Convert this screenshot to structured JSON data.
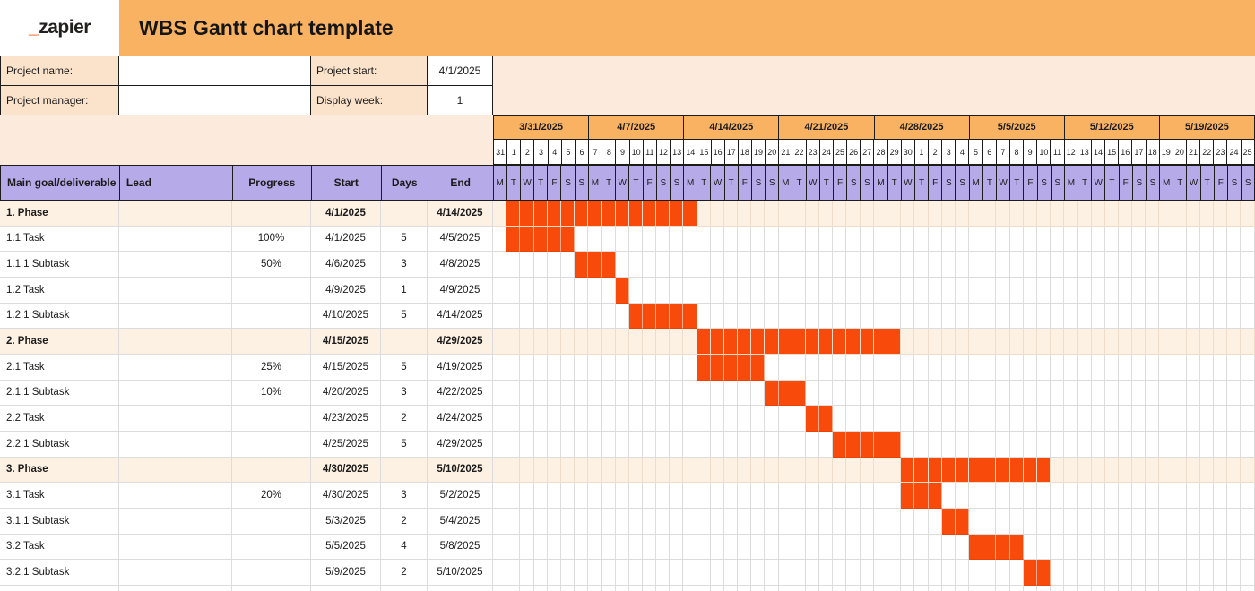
{
  "brand": {
    "logo_prefix": "_",
    "logo_text": "zapier"
  },
  "header": {
    "title": "WBS Gantt chart template"
  },
  "fields": {
    "project_name_label": "Project name:",
    "project_name_value": "",
    "project_manager_label": "Project manager:",
    "project_manager_value": "",
    "project_start_label": "Project start:",
    "project_start_value": "4/1/2025",
    "display_week_label": "Display week:",
    "display_week_value": "1"
  },
  "timeline": {
    "weeks": [
      "3/31/2025",
      "4/7/2025",
      "4/14/2025",
      "4/21/2025",
      "4/28/2025",
      "5/5/2025",
      "5/12/2025",
      "5/19/2025"
    ],
    "day_numbers": [
      31,
      1,
      2,
      3,
      4,
      5,
      6,
      7,
      8,
      9,
      10,
      11,
      12,
      13,
      14,
      15,
      16,
      17,
      18,
      19,
      20,
      21,
      22,
      23,
      24,
      25,
      26,
      27,
      28,
      29,
      30,
      1,
      2,
      3,
      4,
      5,
      6,
      7,
      8,
      9,
      10,
      11,
      12,
      13,
      14,
      15,
      16,
      17,
      18,
      19,
      20,
      21,
      22,
      23,
      24,
      25
    ],
    "weekday_pattern": [
      "M",
      "T",
      "W",
      "T",
      "F",
      "S",
      "S"
    ],
    "weeks_count": 8,
    "days_per_week": 7
  },
  "table": {
    "columns": [
      "Main goal/deliverable",
      "Lead",
      "Progress",
      "Start",
      "Days",
      "End"
    ],
    "rows": [
      {
        "name": "1. Phase",
        "lead": "",
        "progress": "",
        "start": "4/1/2025",
        "days": "",
        "end": "4/14/2025",
        "phase": true,
        "bar_start": 1,
        "bar_len": 14
      },
      {
        "name": "1.1 Task",
        "lead": "",
        "progress": "100%",
        "start": "4/1/2025",
        "days": "5",
        "end": "4/5/2025",
        "phase": false,
        "bar_start": 1,
        "bar_len": 5
      },
      {
        "name": "1.1.1 Subtask",
        "lead": "",
        "progress": "50%",
        "start": "4/6/2025",
        "days": "3",
        "end": "4/8/2025",
        "phase": false,
        "bar_start": 6,
        "bar_len": 3
      },
      {
        "name": "1.2 Task",
        "lead": "",
        "progress": "",
        "start": "4/9/2025",
        "days": "1",
        "end": "4/9/2025",
        "phase": false,
        "bar_start": 9,
        "bar_len": 1
      },
      {
        "name": "1.2.1 Subtask",
        "lead": "",
        "progress": "",
        "start": "4/10/2025",
        "days": "5",
        "end": "4/14/2025",
        "phase": false,
        "bar_start": 10,
        "bar_len": 5
      },
      {
        "name": "2. Phase",
        "lead": "",
        "progress": "",
        "start": "4/15/2025",
        "days": "",
        "end": "4/29/2025",
        "phase": true,
        "bar_start": 15,
        "bar_len": 15
      },
      {
        "name": "2.1 Task",
        "lead": "",
        "progress": "25%",
        "start": "4/15/2025",
        "days": "5",
        "end": "4/19/2025",
        "phase": false,
        "bar_start": 15,
        "bar_len": 5
      },
      {
        "name": "2.1.1 Subtask",
        "lead": "",
        "progress": "10%",
        "start": "4/20/2025",
        "days": "3",
        "end": "4/22/2025",
        "phase": false,
        "bar_start": 20,
        "bar_len": 3
      },
      {
        "name": "2.2 Task",
        "lead": "",
        "progress": "",
        "start": "4/23/2025",
        "days": "2",
        "end": "4/24/2025",
        "phase": false,
        "bar_start": 23,
        "bar_len": 2
      },
      {
        "name": "2.2.1 Subtask",
        "lead": "",
        "progress": "",
        "start": "4/25/2025",
        "days": "5",
        "end": "4/29/2025",
        "phase": false,
        "bar_start": 25,
        "bar_len": 5
      },
      {
        "name": "3. Phase",
        "lead": "",
        "progress": "",
        "start": "4/30/2025",
        "days": "",
        "end": "5/10/2025",
        "phase": true,
        "bar_start": 30,
        "bar_len": 11
      },
      {
        "name": "3.1 Task",
        "lead": "",
        "progress": "20%",
        "start": "4/30/2025",
        "days": "3",
        "end": "5/2/2025",
        "phase": false,
        "bar_start": 30,
        "bar_len": 3
      },
      {
        "name": "3.1.1 Subtask",
        "lead": "",
        "progress": "",
        "start": "5/3/2025",
        "days": "2",
        "end": "5/4/2025",
        "phase": false,
        "bar_start": 33,
        "bar_len": 2
      },
      {
        "name": "3.2 Task",
        "lead": "",
        "progress": "",
        "start": "5/5/2025",
        "days": "4",
        "end": "5/8/2025",
        "phase": false,
        "bar_start": 35,
        "bar_len": 4
      },
      {
        "name": "3.2.1 Subtask",
        "lead": "",
        "progress": "",
        "start": "5/9/2025",
        "days": "2",
        "end": "5/10/2025",
        "phase": false,
        "bar_start": 39,
        "bar_len": 2
      }
    ]
  },
  "colors": {
    "banner": "#F9B262",
    "labelpeach": "#FBE3CB",
    "areapeach": "#FCEBDC",
    "phasepeach": "#FDF1E3",
    "purple": "#B7AAE8",
    "bar": "#F84B0B",
    "logoorange": "#FF4F00",
    "grid": "#DCDCDC",
    "dark": "#1C1C1C"
  }
}
